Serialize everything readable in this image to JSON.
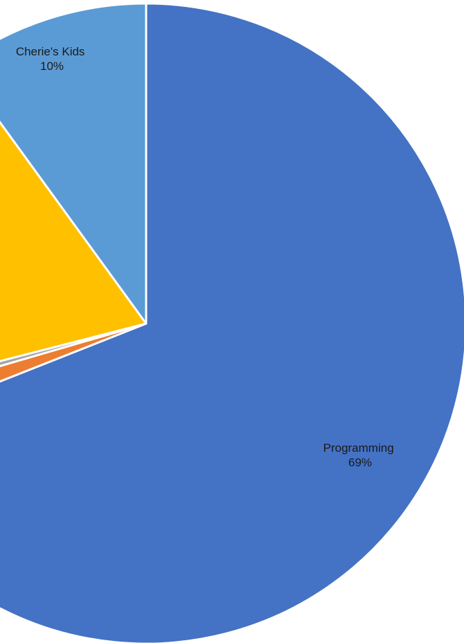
{
  "chart_data": {
    "type": "pie",
    "title": "",
    "slices": [
      {
        "label": "Programming",
        "value": 69,
        "percent_label": "69%",
        "color": "#4472C4",
        "show_label": true
      },
      {
        "label": "",
        "value": 1.5,
        "percent_label": "",
        "color": "#ED7D31",
        "show_label": false
      },
      {
        "label": "",
        "value": 0.5,
        "percent_label": "",
        "color": "#A5A5A5",
        "show_label": false
      },
      {
        "label": "",
        "value": 19,
        "percent_label": "",
        "color": "#FFC000",
        "show_label": false
      },
      {
        "label": "Cherie's Kids",
        "value": 10,
        "percent_label": "10%",
        "color": "#5B9BD5",
        "show_label": true
      }
    ],
    "start_angle": "12 o'clock",
    "direction": "clockwise",
    "legend": "none"
  }
}
